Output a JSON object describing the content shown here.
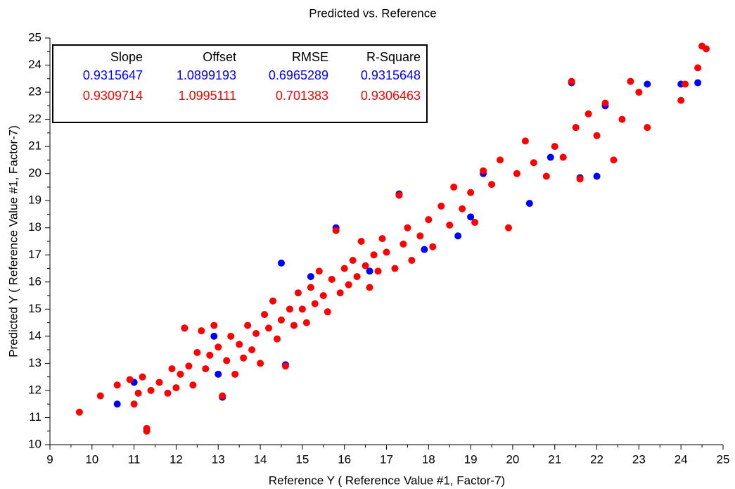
{
  "chart_data": {
    "type": "scatter",
    "title": "Predicted vs. Reference",
    "x_label": "Reference Y ( Reference Value #1, Factor-7)",
    "y_label": "Predicted Y ( Reference Value #1, Factor-7)",
    "xlim": [
      9,
      25
    ],
    "ylim": [
      10,
      25
    ],
    "xticks": [
      9,
      10,
      11,
      12,
      13,
      14,
      15,
      16,
      17,
      18,
      19,
      20,
      21,
      22,
      23,
      24,
      25
    ],
    "yticks": [
      10,
      11,
      12,
      13,
      14,
      15,
      16,
      17,
      18,
      19,
      20,
      21,
      22,
      23,
      24,
      25
    ],
    "stats": {
      "headers": [
        "Slope",
        "Offset",
        "RMSE",
        "R-Square"
      ],
      "rows": [
        {
          "color": "#0000ff",
          "values": [
            0.9315647,
            1.0899193,
            0.6965289,
            0.9315648
          ]
        },
        {
          "color": "#ff0000",
          "values": [
            0.9309714,
            1.0995111,
            0.701383,
            0.9306463
          ]
        }
      ]
    },
    "series": [
      {
        "color": "#0000ff",
        "x": [
          10.6,
          11.0,
          12.2,
          13.1,
          14.6,
          14.5,
          15.8,
          17.3,
          17.9,
          18.7,
          19.3,
          20.4,
          21.4,
          21.6,
          22.0,
          22.2,
          23.2,
          24.0,
          24.4,
          16.6,
          13.0,
          12.9,
          15.2,
          19.0,
          20.9
        ],
        "values": [
          11.5,
          12.3,
          14.3,
          11.75,
          12.95,
          16.7,
          18.0,
          19.25,
          17.2,
          17.7,
          20.0,
          18.9,
          23.35,
          19.85,
          19.9,
          22.5,
          23.3,
          23.3,
          23.35,
          16.4,
          12.6,
          14.0,
          16.2,
          18.4,
          20.6
        ]
      },
      {
        "color": "#ff0000",
        "x": [
          9.7,
          10.2,
          10.6,
          10.9,
          11.0,
          11.1,
          11.2,
          11.3,
          11.3,
          11.4,
          11.6,
          11.8,
          11.9,
          12.0,
          12.1,
          12.2,
          12.3,
          12.4,
          12.5,
          12.6,
          12.7,
          12.8,
          12.9,
          13.0,
          13.1,
          13.2,
          13.3,
          13.4,
          13.5,
          13.6,
          13.7,
          13.8,
          13.9,
          14.0,
          14.1,
          14.2,
          14.3,
          14.4,
          14.5,
          14.6,
          14.7,
          14.8,
          14.9,
          15.0,
          15.1,
          15.2,
          15.3,
          15.4,
          15.5,
          15.6,
          15.7,
          15.8,
          15.9,
          16.0,
          16.1,
          16.2,
          16.3,
          16.4,
          16.5,
          16.6,
          16.7,
          16.8,
          16.9,
          17.0,
          17.2,
          17.3,
          17.4,
          17.5,
          17.6,
          17.8,
          18.0,
          18.1,
          18.3,
          18.5,
          18.6,
          18.8,
          19.0,
          19.1,
          19.3,
          19.5,
          19.7,
          19.9,
          20.1,
          20.3,
          20.5,
          20.8,
          21.0,
          21.2,
          21.4,
          21.5,
          21.6,
          21.8,
          22.0,
          22.2,
          22.4,
          22.6,
          22.8,
          23.0,
          23.2,
          24.0,
          24.1,
          24.4,
          24.5,
          24.6
        ],
        "values": [
          11.2,
          11.8,
          12.2,
          12.4,
          11.5,
          11.9,
          12.5,
          10.6,
          10.5,
          12.0,
          12.3,
          11.9,
          12.8,
          12.1,
          12.6,
          14.3,
          12.9,
          12.2,
          13.4,
          14.2,
          12.8,
          13.3,
          14.4,
          13.6,
          11.8,
          13.1,
          14.0,
          12.6,
          13.7,
          13.2,
          14.4,
          13.5,
          14.1,
          13.0,
          14.8,
          14.3,
          15.3,
          13.9,
          14.6,
          12.9,
          15.0,
          14.4,
          15.6,
          15.0,
          14.5,
          15.8,
          15.2,
          16.4,
          15.5,
          14.9,
          16.1,
          17.9,
          15.6,
          16.5,
          15.9,
          16.8,
          16.2,
          17.5,
          16.6,
          15.8,
          17.0,
          16.4,
          17.6,
          17.1,
          16.5,
          19.2,
          17.4,
          18.0,
          16.8,
          17.7,
          18.3,
          17.3,
          18.8,
          18.1,
          19.5,
          18.7,
          19.3,
          18.2,
          20.1,
          19.6,
          20.5,
          18.0,
          20.0,
          21.2,
          20.4,
          19.9,
          21.0,
          20.6,
          23.4,
          21.7,
          19.8,
          22.2,
          21.4,
          22.6,
          20.5,
          22.0,
          23.4,
          23.0,
          21.7,
          22.7,
          23.3,
          23.9,
          24.7,
          24.6
        ]
      }
    ]
  }
}
